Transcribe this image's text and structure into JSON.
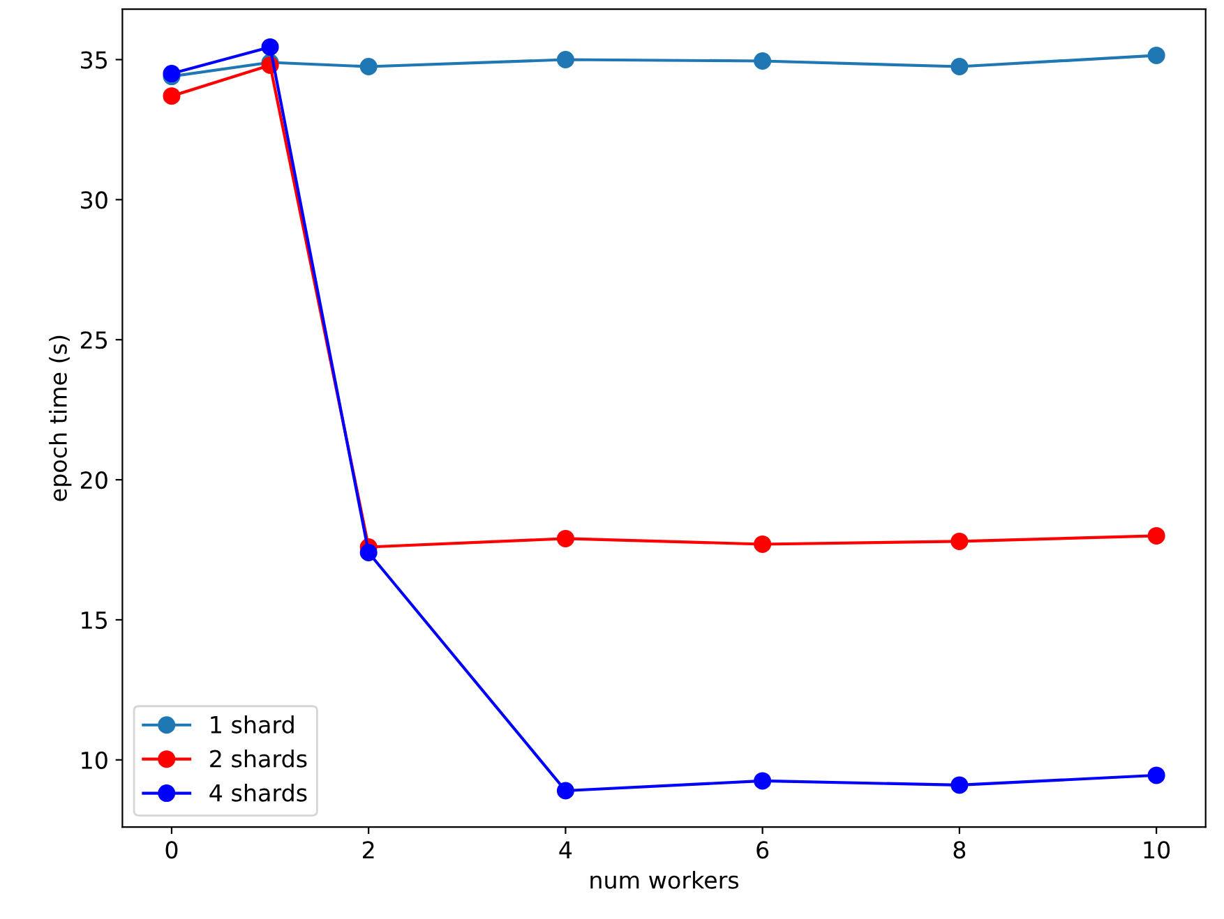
{
  "chart_data": {
    "type": "line",
    "xlabel": "num workers",
    "ylabel": "epoch time (s)",
    "x": [
      0,
      1,
      2,
      4,
      6,
      8,
      10
    ],
    "series": [
      {
        "name": "1 shard",
        "color": "#1f77b4",
        "values": [
          34.4,
          34.9,
          34.75,
          35.0,
          34.95,
          34.75,
          35.15
        ]
      },
      {
        "name": "2 shards",
        "color": "#ff0000",
        "values": [
          33.7,
          34.8,
          17.6,
          17.9,
          17.7,
          17.8,
          18.0
        ]
      },
      {
        "name": "4 shards",
        "color": "#0000ff",
        "values": [
          34.5,
          35.45,
          17.4,
          8.9,
          9.25,
          9.1,
          9.45
        ]
      }
    ],
    "xlim": [
      -0.5,
      10.5
    ],
    "ylim": [
      7.6,
      36.8
    ],
    "xticks": [
      0,
      2,
      4,
      6,
      8,
      10
    ],
    "yticks": [
      10,
      15,
      20,
      25,
      30,
      35
    ],
    "marker": "circle",
    "line_style": "solid",
    "legend": "bottom left",
    "grid": false
  }
}
